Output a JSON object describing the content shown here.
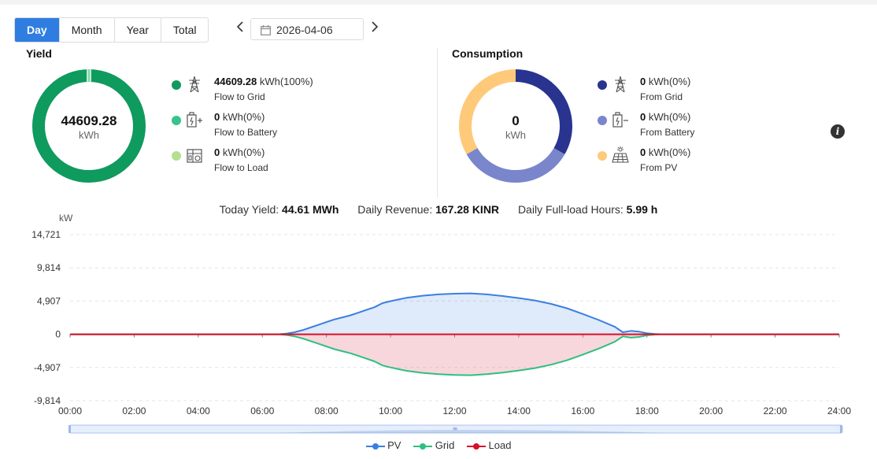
{
  "tabs": [
    "Day",
    "Month",
    "Year",
    "Total"
  ],
  "active_tab": "Day",
  "date": "2026-04-06",
  "yield": {
    "title": "Yield",
    "center_value": "44609.28",
    "center_unit": "kWh",
    "items": [
      {
        "value": "44609.28",
        "unit": " kWh(100%)",
        "label": "Flow to Grid",
        "color": "#0f9a5e",
        "icon": "power-tower-icon"
      },
      {
        "value": "0",
        "unit": " kWh(0%)",
        "label": "Flow to Battery",
        "color": "#35c48d",
        "icon": "battery-charge-icon"
      },
      {
        "value": "0",
        "unit": " kWh(0%)",
        "label": "Flow to Load",
        "color": "#b4e08f",
        "icon": "house-load-icon"
      }
    ]
  },
  "consumption": {
    "title": "Consumption",
    "center_value": "0",
    "center_unit": "kWh",
    "items": [
      {
        "value": "0",
        "unit": " kWh(0%)",
        "label": "From Grid",
        "color": "#28348f",
        "icon": "power-tower-icon"
      },
      {
        "value": "0",
        "unit": " kWh(0%)",
        "label": "From Battery",
        "color": "#7986cb",
        "icon": "battery-discharge-icon"
      },
      {
        "value": "0",
        "unit": " kWh(0%)",
        "label": "From PV",
        "color": "#ffc97a",
        "icon": "solar-panel-icon"
      }
    ]
  },
  "summary": {
    "today_yield_label": "Today Yield:",
    "today_yield_value": "44.61 MWh",
    "revenue_label": "Daily Revenue:",
    "revenue_value": "167.28 KINR",
    "hours_label": "Daily Full-load Hours:",
    "hours_value": "5.99 h"
  },
  "colors": {
    "accent": "#2f7de1",
    "pv": "#3a7fe0",
    "grid": "#2fbf7f",
    "load": "#d7102a"
  },
  "chart_data": {
    "type": "area",
    "ylabel": "kW",
    "y_ticks": [
      "14,721",
      "9,814",
      "4,907",
      "0",
      "-4,907",
      "-9,814"
    ],
    "x_ticks": [
      "00:00",
      "02:00",
      "04:00",
      "06:00",
      "08:00",
      "10:00",
      "12:00",
      "14:00",
      "16:00",
      "18:00",
      "20:00",
      "22:00",
      "24:00"
    ],
    "ylim": [
      -9814,
      14721
    ],
    "xlim": [
      0,
      24
    ],
    "grid": true,
    "legend_position": "bottom",
    "x": [
      0,
      6.5,
      6.75,
      7,
      7.25,
      7.5,
      7.75,
      8,
      8.25,
      8.5,
      8.75,
      9,
      9.25,
      9.5,
      9.75,
      10,
      10.5,
      11,
      11.5,
      12,
      12.5,
      13,
      13.5,
      14,
      14.5,
      15,
      15.5,
      16,
      16.5,
      17,
      17.25,
      17.5,
      17.75,
      18,
      18.25,
      18.5,
      19,
      24
    ],
    "series": [
      {
        "name": "PV",
        "values": [
          0,
          0,
          100,
          300,
          600,
          1000,
          1400,
          1800,
          2200,
          2500,
          2800,
          3200,
          3600,
          4000,
          4600,
          4900,
          5400,
          5700,
          5900,
          6000,
          6050,
          5900,
          5650,
          5350,
          5000,
          4500,
          3850,
          3000,
          2100,
          1100,
          300,
          500,
          400,
          150,
          50,
          0,
          0,
          0
        ]
      },
      {
        "name": "Grid",
        "values": [
          0,
          0,
          -100,
          -300,
          -600,
          -1000,
          -1400,
          -1800,
          -2200,
          -2500,
          -2800,
          -3200,
          -3600,
          -4000,
          -4600,
          -4900,
          -5400,
          -5700,
          -5900,
          -6000,
          -6050,
          -5900,
          -5650,
          -5350,
          -5000,
          -4500,
          -3850,
          -3000,
          -2100,
          -1100,
          -300,
          -500,
          -400,
          -150,
          -50,
          0,
          0,
          0
        ]
      },
      {
        "name": "Load",
        "values": [
          0,
          0,
          0,
          0,
          0,
          0,
          0,
          0,
          0,
          0,
          0,
          0,
          0,
          0,
          0,
          0,
          0,
          0,
          0,
          0,
          0,
          0,
          0,
          0,
          0,
          0,
          0,
          0,
          0,
          0,
          0,
          0,
          0,
          0,
          0,
          0,
          0,
          0
        ]
      }
    ]
  }
}
